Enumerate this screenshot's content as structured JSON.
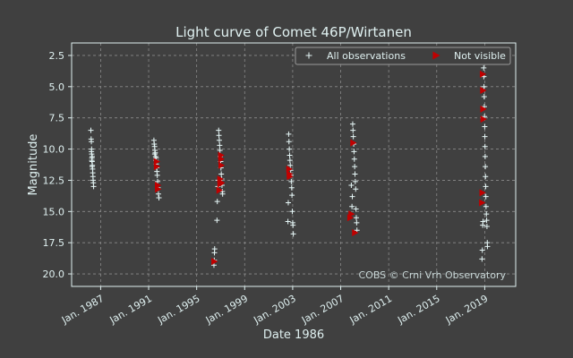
{
  "chart_data": {
    "type": "scatter",
    "title": "Light curve of Comet 46P/Wirtanen",
    "xlabel": "Date 1986",
    "ylabel": "Magnitude",
    "x_ticks": [
      "Jan. 1987",
      "Jan. 1991",
      "Jan. 1995",
      "Jan. 1999",
      "Jan. 2003",
      "Jan. 2007",
      "Jan. 2011",
      "Jan. 2015",
      "Jan. 2019"
    ],
    "y_ticks": [
      2.5,
      5.0,
      7.5,
      10.0,
      12.5,
      15.0,
      17.5,
      20.0
    ],
    "xlim": [
      "1984-08-01",
      "2021-08-01"
    ],
    "ylim": [
      21.0,
      1.5
    ],
    "y_inverted": true,
    "grid": true,
    "legend_position": "top-right",
    "annotation": "COBS © Crni Vrh Observatory",
    "colors": {
      "all": "#e6f7f7",
      "not_visible": "#c00000",
      "background": "#404040",
      "grid": "#8a8a8a",
      "text": "#dff0f0"
    },
    "series": [
      {
        "name": "All observations",
        "marker": "plus",
        "points": [
          [
            "1986-03-10",
            8.5
          ],
          [
            "1986-03-18",
            9.2
          ],
          [
            "1986-03-25",
            9.4
          ],
          [
            "1986-04-01",
            10.0
          ],
          [
            "1986-04-05",
            10.4
          ],
          [
            "1986-04-10",
            10.7
          ],
          [
            "1986-04-15",
            11.0
          ],
          [
            "1986-04-20",
            10.6
          ],
          [
            "1986-04-25",
            11.3
          ],
          [
            "1986-05-01",
            11.6
          ],
          [
            "1986-05-06",
            11.9
          ],
          [
            "1986-05-12",
            12.2
          ],
          [
            "1986-05-18",
            12.5
          ],
          [
            "1986-05-25",
            12.7
          ],
          [
            "1986-06-01",
            13.0
          ],
          [
            "1986-03-28",
            10.2
          ],
          [
            "1986-04-08",
            10.9
          ],
          [
            "1986-04-18",
            11.4
          ],
          [
            "1991-06-10",
            9.3
          ],
          [
            "1991-06-20",
            9.6
          ],
          [
            "1991-07-01",
            9.8
          ],
          [
            "1991-07-10",
            10.1
          ],
          [
            "1991-07-20",
            10.3
          ],
          [
            "1991-08-01",
            10.6
          ],
          [
            "1991-08-10",
            10.9
          ],
          [
            "1991-08-20",
            11.2
          ],
          [
            "1991-09-01",
            11.5
          ],
          [
            "1991-09-10",
            11.8
          ],
          [
            "1991-09-20",
            12.1
          ],
          [
            "1991-10-01",
            12.6
          ],
          [
            "1991-10-10",
            13.1
          ],
          [
            "1991-10-25",
            13.6
          ],
          [
            "1991-11-10",
            13.9
          ],
          [
            "1991-07-05",
            10.4
          ],
          [
            "1991-08-15",
            10.7
          ],
          [
            "1996-11-01",
            8.5
          ],
          [
            "1996-11-10",
            8.9
          ],
          [
            "1996-11-20",
            9.3
          ],
          [
            "1996-12-01",
            9.7
          ],
          [
            "1996-12-10",
            10.1
          ],
          [
            "1996-12-20",
            10.6
          ],
          [
            "1997-01-01",
            11.0
          ],
          [
            "1997-01-10",
            11.5
          ],
          [
            "1997-01-20",
            12.0
          ],
          [
            "1997-02-01",
            12.4
          ],
          [
            "1997-02-10",
            12.9
          ],
          [
            "1997-02-20",
            13.4
          ],
          [
            "1997-03-01",
            13.6
          ],
          [
            "1996-10-15",
            12.5
          ],
          [
            "1996-10-10",
            13.0
          ],
          [
            "1996-09-20",
            14.2
          ],
          [
            "1996-09-10",
            15.7
          ],
          [
            "1996-07-01",
            18.0
          ],
          [
            "1996-06-25",
            18.3
          ],
          [
            "1996-06-20",
            18.9
          ],
          [
            "1996-06-10",
            19.3
          ],
          [
            "2002-09-01",
            8.8
          ],
          [
            "2002-09-10",
            9.4
          ],
          [
            "2002-09-20",
            10.0
          ],
          [
            "2002-10-01",
            10.5
          ],
          [
            "2002-10-10",
            10.9
          ],
          [
            "2002-10-20",
            11.3
          ],
          [
            "2002-11-01",
            11.7
          ],
          [
            "2002-11-10",
            12.1
          ],
          [
            "2002-11-20",
            12.6
          ],
          [
            "2002-12-01",
            13.1
          ],
          [
            "2002-12-10",
            13.7
          ],
          [
            "2002-08-20",
            14.3
          ],
          [
            "2002-08-10",
            15.8
          ],
          [
            "2002-12-20",
            15.0
          ],
          [
            "2003-01-01",
            15.9
          ],
          [
            "2003-01-10",
            16.1
          ],
          [
            "2003-01-20",
            16.8
          ],
          [
            "2008-01-01",
            8.0
          ],
          [
            "2008-01-10",
            8.5
          ],
          [
            "2008-01-20",
            9.0
          ],
          [
            "2008-02-01",
            9.6
          ],
          [
            "2008-02-10",
            10.2
          ],
          [
            "2008-02-20",
            10.8
          ],
          [
            "2008-03-01",
            11.4
          ],
          [
            "2008-03-10",
            12.0
          ],
          [
            "2008-03-20",
            12.6
          ],
          [
            "2008-04-01",
            13.2
          ],
          [
            "2007-12-20",
            13.8
          ],
          [
            "2007-12-10",
            14.6
          ],
          [
            "2008-04-10",
            14.8
          ],
          [
            "2008-04-20",
            15.5
          ],
          [
            "2008-05-01",
            15.9
          ],
          [
            "2008-05-10",
            16.5
          ],
          [
            "2007-11-20",
            12.9
          ],
          [
            "2018-12-01",
            3.5
          ],
          [
            "2018-12-05",
            4.2
          ],
          [
            "2018-12-10",
            5.0
          ],
          [
            "2018-12-15",
            5.8
          ],
          [
            "2018-12-20",
            6.6
          ],
          [
            "2018-12-25",
            7.4
          ],
          [
            "2019-01-01",
            8.2
          ],
          [
            "2019-01-05",
            9.0
          ],
          [
            "2019-01-10",
            9.8
          ],
          [
            "2019-01-15",
            10.6
          ],
          [
            "2019-01-20",
            11.4
          ],
          [
            "2019-01-25",
            12.2
          ],
          [
            "2019-02-01",
            13.0
          ],
          [
            "2019-02-05",
            13.8
          ],
          [
            "2019-02-10",
            14.6
          ],
          [
            "2019-02-20",
            15.2
          ],
          [
            "2019-03-01",
            15.7
          ],
          [
            "2019-03-10",
            16.2
          ],
          [
            "2019-03-20",
            17.5
          ],
          [
            "2019-03-25",
            17.8
          ],
          [
            "2018-11-10",
            15.8
          ],
          [
            "2018-11-01",
            16.1
          ],
          [
            "2018-10-20",
            18.1
          ],
          [
            "2018-10-10",
            18.8
          ]
        ]
      },
      {
        "name": "Not visible",
        "marker": "triangle-right",
        "points": [
          [
            "1991-09-01",
            11.0
          ],
          [
            "1991-09-05",
            11.4
          ],
          [
            "1991-10-05",
            12.9
          ],
          [
            "1991-10-10",
            13.2
          ],
          [
            "1996-12-15",
            12.4
          ],
          [
            "1996-12-20",
            12.8
          ],
          [
            "1996-11-20",
            13.3
          ],
          [
            "1997-01-10",
            10.5
          ],
          [
            "1997-01-15",
            10.8
          ],
          [
            "1997-01-20",
            11.3
          ],
          [
            "1997-02-01",
            12.7
          ],
          [
            "1996-06-20",
            19.0
          ],
          [
            "2002-09-15",
            11.6
          ],
          [
            "2002-09-25",
            12.0
          ],
          [
            "2002-10-05",
            12.2
          ],
          [
            "2007-10-15",
            15.5
          ],
          [
            "2007-11-20",
            15.2
          ],
          [
            "2008-01-15",
            9.5
          ],
          [
            "2008-03-10",
            16.7
          ],
          [
            "2018-11-01",
            4.0
          ],
          [
            "2018-11-10",
            5.3
          ],
          [
            "2018-11-15",
            6.8
          ],
          [
            "2018-11-20",
            7.6
          ],
          [
            "2018-10-20",
            13.5
          ],
          [
            "2018-10-10",
            14.3
          ]
        ]
      }
    ]
  }
}
